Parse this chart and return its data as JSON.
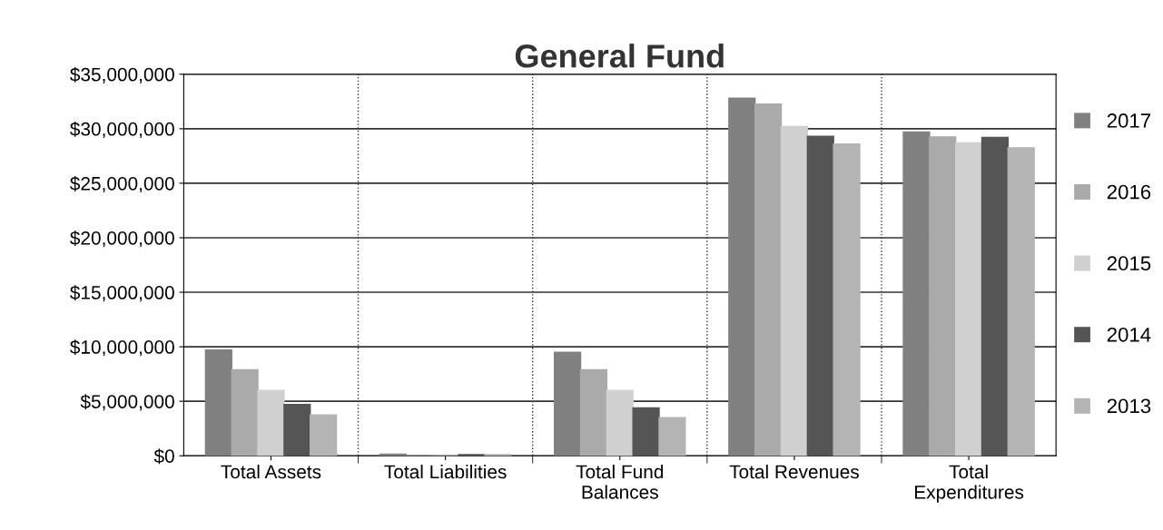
{
  "chart_data": {
    "type": "bar",
    "title": "General Fund",
    "categories": [
      "Total Assets",
      "Total Liabilities",
      "Total Fund\nBalances",
      "Total Revenues",
      "Total\nExpenditures"
    ],
    "series": [
      {
        "name": "2017",
        "color": "#808080",
        "values": [
          9700000,
          150000,
          9500000,
          32800000,
          29700000
        ]
      },
      {
        "name": "2016",
        "color": "#aaaaaa",
        "values": [
          7900000,
          0,
          7900000,
          32250000,
          29250000
        ]
      },
      {
        "name": "2015",
        "color": "#d0d0d0",
        "values": [
          6000000,
          0,
          6000000,
          30200000,
          28700000
        ]
      },
      {
        "name": "2014",
        "color": "#555555",
        "values": [
          4700000,
          100000,
          4400000,
          29300000,
          29200000
        ]
      },
      {
        "name": "2013",
        "color": "#b4b4b4",
        "values": [
          3750000,
          100000,
          3500000,
          28600000,
          28250000
        ]
      }
    ],
    "ylim": [
      0,
      35000000
    ],
    "yticks": [
      {
        "value": 0,
        "label": "$0"
      },
      {
        "value": 5000000,
        "label": "$5,000,000"
      },
      {
        "value": 10000000,
        "label": "$10,000,000"
      },
      {
        "value": 15000000,
        "label": "$15,000,000"
      },
      {
        "value": 20000000,
        "label": "$20,000,000"
      },
      {
        "value": 25000000,
        "label": "$25,000,000"
      },
      {
        "value": 30000000,
        "label": "$30,000,000"
      },
      {
        "value": 35000000,
        "label": "$35,000,000"
      }
    ],
    "grid": true,
    "legend": "right"
  }
}
